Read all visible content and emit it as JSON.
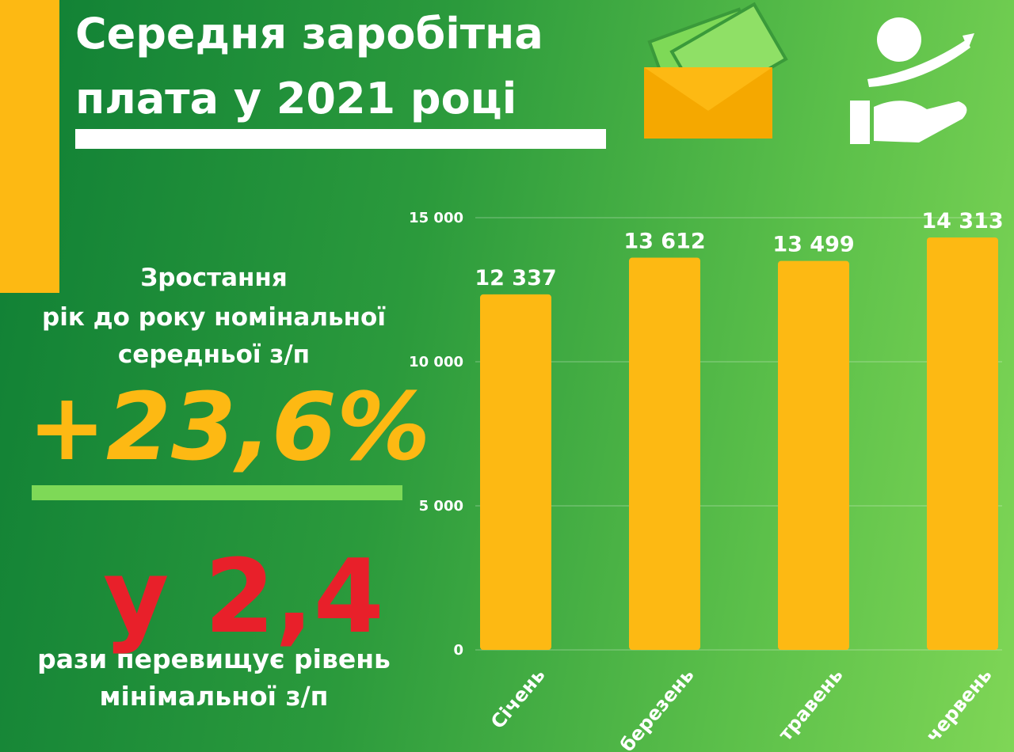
{
  "chart_data": {
    "type": "bar",
    "title": "Середня заробітна плата у 2021 році",
    "categories": [
      "Січень",
      "березень",
      "травень",
      "червень"
    ],
    "values": [
      12337,
      13612,
      13499,
      14313
    ],
    "value_labels": [
      "12 337",
      "13 612",
      "13 499",
      "14 313"
    ],
    "color": "#fdb913",
    "ylim": [
      0,
      15000
    ],
    "yticks": [
      {
        "value": 0,
        "label": "0"
      },
      {
        "value": 5000,
        "label": "5 000"
      },
      {
        "value": 10000,
        "label": "10 000"
      },
      {
        "value": 15000,
        "label": "15 000"
      }
    ],
    "grid": true,
    "annotations": {
      "growth_lines": [
        "Зростання",
        "рік до року номінальної",
        "середньої з/п"
      ],
      "growth_value": "+23,6%",
      "ratio_value": "у 2,4",
      "ratio_lines": [
        "рази перевищує рівень",
        "мінімальної з/п"
      ]
    }
  }
}
